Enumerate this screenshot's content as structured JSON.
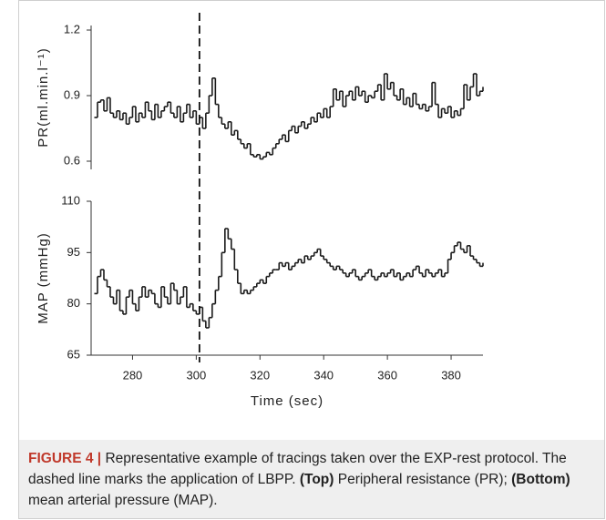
{
  "chart_data": [
    {
      "type": "step",
      "y_label": "PR(ml.min.l⁻¹)",
      "color": "#1a1a1a",
      "x": [
        268,
        269,
        270,
        271,
        272,
        273,
        274,
        275,
        276,
        277,
        278,
        279,
        280,
        281,
        282,
        283,
        284,
        285,
        286,
        287,
        288,
        289,
        290,
        291,
        292,
        293,
        294,
        295,
        296,
        297,
        298,
        299,
        300,
        301,
        302,
        303,
        304,
        305,
        306,
        307,
        308,
        309,
        310,
        311,
        312,
        313,
        314,
        315,
        316,
        317,
        318,
        319,
        320,
        321,
        322,
        323,
        324,
        325,
        326,
        327,
        328,
        329,
        330,
        331,
        332,
        333,
        334,
        335,
        336,
        337,
        338,
        339,
        340,
        341,
        342,
        343,
        344,
        345,
        346,
        347,
        348,
        349,
        350,
        351,
        352,
        353,
        354,
        355,
        356,
        357,
        358,
        359,
        360,
        361,
        362,
        363,
        364,
        365,
        366,
        367,
        368,
        369,
        370,
        371,
        372,
        373,
        374,
        375,
        376,
        377,
        378,
        379,
        380,
        381,
        382,
        383,
        384,
        385,
        386,
        387,
        388,
        389,
        390
      ],
      "values": [
        0.8,
        0.87,
        0.88,
        0.83,
        0.89,
        0.82,
        0.8,
        0.83,
        0.79,
        0.82,
        0.77,
        0.8,
        0.85,
        0.78,
        0.82,
        0.8,
        0.87,
        0.83,
        0.79,
        0.86,
        0.8,
        0.83,
        0.85,
        0.87,
        0.82,
        0.8,
        0.85,
        0.78,
        0.82,
        0.86,
        0.8,
        0.83,
        0.77,
        0.8,
        0.75,
        0.82,
        0.9,
        0.98,
        0.86,
        0.8,
        0.77,
        0.75,
        0.78,
        0.72,
        0.74,
        0.7,
        0.68,
        0.66,
        0.68,
        0.63,
        0.62,
        0.63,
        0.61,
        0.62,
        0.64,
        0.63,
        0.66,
        0.68,
        0.7,
        0.72,
        0.69,
        0.74,
        0.76,
        0.73,
        0.76,
        0.78,
        0.75,
        0.77,
        0.8,
        0.78,
        0.82,
        0.8,
        0.84,
        0.8,
        0.85,
        0.93,
        0.88,
        0.92,
        0.85,
        0.9,
        0.92,
        0.88,
        0.94,
        0.9,
        0.92,
        0.87,
        0.9,
        0.89,
        0.92,
        0.95,
        0.88,
        1.0,
        0.93,
        0.96,
        0.9,
        0.88,
        0.93,
        0.86,
        0.89,
        0.85,
        0.91,
        0.86,
        0.84,
        0.86,
        0.83,
        0.85,
        0.96,
        0.86,
        0.8,
        0.84,
        0.82,
        0.85,
        0.8,
        0.83,
        0.81,
        0.84,
        0.95,
        0.88,
        0.94,
        1.0,
        0.9,
        0.92,
        0.94
      ],
      "xlim": [
        267,
        390
      ],
      "ylim": [
        0.6,
        1.2
      ],
      "yticks": [
        0.6,
        0.9,
        1.2
      ]
    },
    {
      "type": "step",
      "y_label": "MAP (mmHg)",
      "x_label": "Time (sec)",
      "color": "#1a1a1a",
      "x": [
        268,
        269,
        270,
        271,
        272,
        273,
        274,
        275,
        276,
        277,
        278,
        279,
        280,
        281,
        282,
        283,
        284,
        285,
        286,
        287,
        288,
        289,
        290,
        291,
        292,
        293,
        294,
        295,
        296,
        297,
        298,
        299,
        300,
        301,
        302,
        303,
        304,
        305,
        306,
        307,
        308,
        309,
        310,
        311,
        312,
        313,
        314,
        315,
        316,
        317,
        318,
        319,
        320,
        321,
        322,
        323,
        324,
        325,
        326,
        327,
        328,
        329,
        330,
        331,
        332,
        333,
        334,
        335,
        336,
        337,
        338,
        339,
        340,
        341,
        342,
        343,
        344,
        345,
        346,
        347,
        348,
        349,
        350,
        351,
        352,
        353,
        354,
        355,
        356,
        357,
        358,
        359,
        360,
        361,
        362,
        363,
        364,
        365,
        366,
        367,
        368,
        369,
        370,
        371,
        372,
        373,
        374,
        375,
        376,
        377,
        378,
        379,
        380,
        381,
        382,
        383,
        384,
        385,
        386,
        387,
        388,
        389,
        390
      ],
      "values": [
        83,
        88,
        90,
        87,
        85,
        82,
        80,
        84,
        78,
        77,
        82,
        84,
        80,
        78,
        82,
        85,
        82,
        84,
        83,
        80,
        79,
        85,
        82,
        80,
        86,
        84,
        80,
        82,
        85,
        79,
        80,
        78,
        77,
        79,
        75,
        73,
        76,
        80,
        84,
        88,
        95,
        102,
        99,
        96,
        90,
        86,
        83,
        84,
        83,
        84,
        85,
        86,
        87,
        86,
        88,
        89,
        90,
        90,
        92,
        91,
        92,
        90,
        91,
        92,
        93,
        92,
        94,
        93,
        94,
        95,
        96,
        94,
        93,
        92,
        91,
        90,
        91,
        90,
        89,
        88,
        89,
        90,
        88,
        87,
        88,
        89,
        90,
        88,
        87,
        88,
        89,
        88,
        89,
        90,
        88,
        89,
        87,
        88,
        89,
        88,
        90,
        91,
        89,
        88,
        90,
        89,
        88,
        89,
        90,
        88,
        89,
        93,
        95,
        97,
        98,
        96,
        95,
        97,
        94,
        93,
        92,
        91,
        92
      ],
      "xlim": [
        267,
        390
      ],
      "ylim": [
        65,
        110
      ],
      "yticks": [
        65,
        80,
        95,
        110
      ],
      "xticks": [
        280,
        300,
        320,
        340,
        360,
        380
      ]
    }
  ],
  "dashed_line_x": 301,
  "caption": {
    "label": "FIGURE 4 |",
    "text": "Representative example of tracings taken over the EXP-rest protocol. The dashed line marks the application of LBPP.",
    "top_label": "(Top)",
    "top_text": "Peripheral resistance (PR);",
    "bottom_label": "(Bottom)",
    "bottom_text": "mean arterial pressure (MAP)."
  }
}
